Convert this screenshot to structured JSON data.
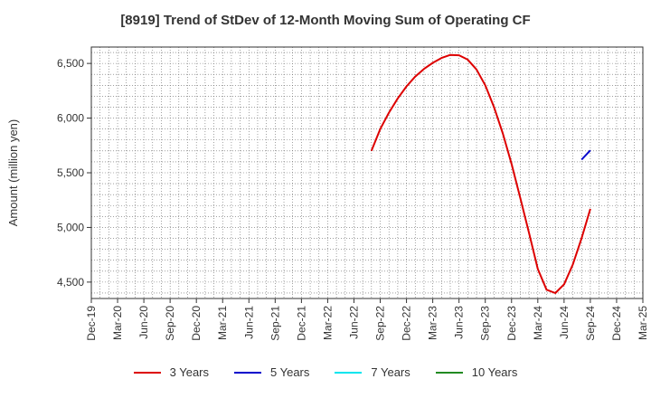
{
  "chart_data": {
    "type": "line",
    "title": "[8919]  Trend of StDev of 12-Month Moving Sum of Operating CF",
    "xlabel": "",
    "ylabel": "Amount (million yen)",
    "ylim": [
      4350,
      6650
    ],
    "yticks": [
      4500,
      5000,
      5500,
      6000,
      6500
    ],
    "ytick_labels": [
      "4,500",
      "5,000",
      "5,500",
      "6,000",
      "6,500"
    ],
    "xticks": [
      "Dec-19",
      "Mar-20",
      "Jun-20",
      "Sep-20",
      "Dec-20",
      "Mar-21",
      "Jun-21",
      "Sep-21",
      "Dec-21",
      "Mar-22",
      "Jun-22",
      "Sep-22",
      "Dec-22",
      "Mar-23",
      "Jun-23",
      "Sep-23",
      "Dec-23",
      "Mar-24",
      "Jun-24",
      "Sep-24",
      "Dec-24",
      "Mar-25"
    ],
    "grid": true,
    "legend_position": "bottom",
    "series": [
      {
        "name": "3 Years",
        "color": "#dd0000",
        "x": [
          "Aug-22",
          "Sep-22",
          "Oct-22",
          "Nov-22",
          "Dec-22",
          "Jan-23",
          "Feb-23",
          "Mar-23",
          "Apr-23",
          "May-23",
          "Jun-23",
          "Jul-23",
          "Aug-23",
          "Sep-23",
          "Oct-23",
          "Nov-23",
          "Dec-23",
          "Jan-24",
          "Feb-24",
          "Mar-24",
          "Apr-24",
          "May-24",
          "Jun-24",
          "Jul-24",
          "Aug-24",
          "Sep-24"
        ],
        "values": [
          5700,
          5900,
          6050,
          6180,
          6290,
          6380,
          6450,
          6505,
          6550,
          6578,
          6575,
          6535,
          6445,
          6300,
          6100,
          5860,
          5580,
          5270,
          4950,
          4620,
          4430,
          4400,
          4480,
          4660,
          4900,
          5170
        ]
      },
      {
        "name": "5 Years",
        "color": "#0000cc",
        "x": [
          "Aug-24",
          "Sep-24"
        ],
        "values": [
          5620,
          5705
        ]
      },
      {
        "name": "7 Years",
        "color": "#00e5ee",
        "x": [],
        "values": []
      },
      {
        "name": "10 Years",
        "color": "#228b22",
        "x": [],
        "values": []
      }
    ]
  }
}
